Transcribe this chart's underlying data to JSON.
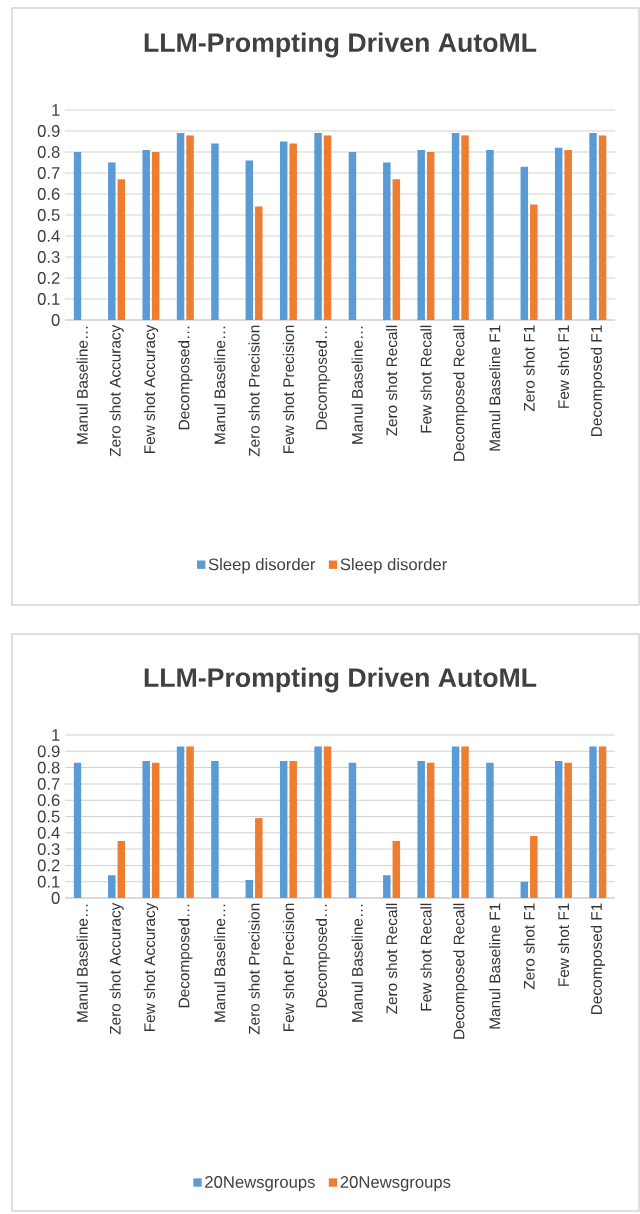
{
  "chart_data": [
    {
      "type": "bar",
      "title": "LLM-Prompting Driven AutoML",
      "categories": [
        "Manul Baseline…",
        "Zero shot Accuracy",
        "Few shot Accuracy",
        "Decomposed…",
        "Manul Baseline…",
        "Zero shot Precision",
        "Few shot Precision",
        "Decomposed…",
        "Manul Baseline…",
        "Zero shot Recall",
        "Few shot Recall",
        "Decomposed Recall",
        "Manul Baseline F1",
        "Zero shot F1",
        "Few shot F1",
        "Decomposed F1"
      ],
      "series": [
        {
          "name": "Sleep disorder",
          "color": "#5b9bd5",
          "values": [
            0.8,
            0.75,
            0.81,
            0.89,
            0.84,
            0.76,
            0.85,
            0.89,
            0.8,
            0.75,
            0.81,
            0.89,
            0.81,
            0.73,
            0.82,
            0.89
          ]
        },
        {
          "name": "Sleep disorder",
          "color": "#ed7d31",
          "values": [
            null,
            0.67,
            0.8,
            0.88,
            null,
            0.54,
            0.84,
            0.88,
            null,
            0.67,
            0.8,
            0.88,
            null,
            0.55,
            0.81,
            0.88
          ]
        }
      ],
      "ylim": [
        0,
        1
      ],
      "yticks": [
        0,
        0.1,
        0.2,
        0.3,
        0.4,
        0.5,
        0.6,
        0.7,
        0.8,
        0.9,
        1
      ],
      "grid": "y",
      "legend": "bottom"
    },
    {
      "type": "bar",
      "title": "LLM-Prompting Driven AutoML",
      "categories": [
        "Manul Baseline…",
        "Zero shot Accuracy",
        "Few shot Accuracy",
        "Decomposed…",
        "Manul Baseline…",
        "Zero shot Precision",
        "Few shot Precision",
        "Decomposed…",
        "Manul Baseline…",
        "Zero shot Recall",
        "Few shot Recall",
        "Decomposed Recall",
        "Manul Baseline F1",
        "Zero shot F1",
        "Few shot F1",
        "Decomposed F1"
      ],
      "series": [
        {
          "name": "20Newsgroups",
          "color": "#5b9bd5",
          "values": [
            0.83,
            0.14,
            0.84,
            0.93,
            0.84,
            0.11,
            0.84,
            0.93,
            0.83,
            0.14,
            0.84,
            0.93,
            0.83,
            0.1,
            0.84,
            0.93
          ]
        },
        {
          "name": "20Newsgroups",
          "color": "#ed7d31",
          "values": [
            null,
            0.35,
            0.83,
            0.93,
            null,
            0.49,
            0.84,
            0.93,
            null,
            0.35,
            0.83,
            0.93,
            null,
            0.38,
            0.83,
            0.93
          ]
        }
      ],
      "ylim": [
        0,
        1
      ],
      "yticks": [
        0,
        0.1,
        0.2,
        0.3,
        0.4,
        0.5,
        0.6,
        0.7,
        0.8,
        0.9,
        1
      ],
      "grid": "y",
      "legend": "bottom"
    }
  ]
}
